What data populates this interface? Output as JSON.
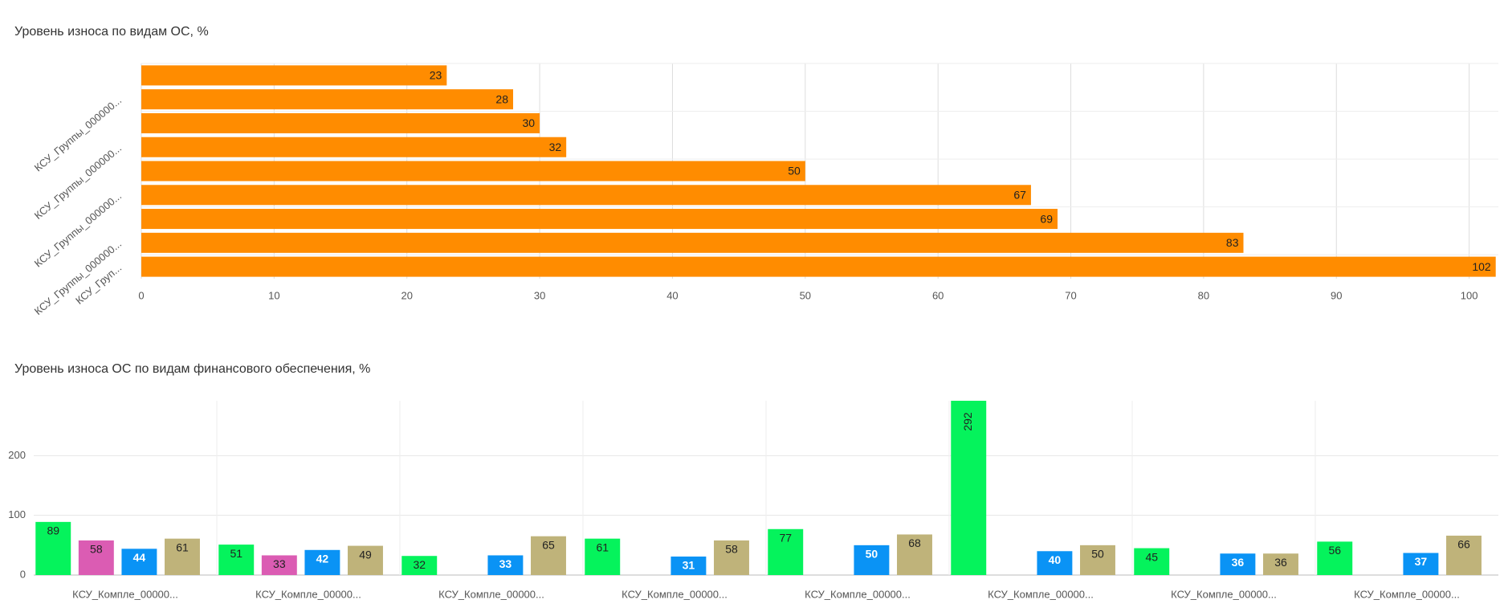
{
  "chart_data": [
    {
      "type": "hbar",
      "title": "Уровень износа по видам ОС, %",
      "categories": [
        null,
        "КСУ_Группы_000000...",
        null,
        "КСУ_Группы_000000...",
        null,
        "КСУ_Группы_000000...",
        null,
        "КСУ_Группы_000000...",
        "КСУ_Груп..."
      ],
      "values": [
        23,
        28,
        30,
        32,
        50,
        67,
        69,
        83,
        102
      ],
      "color": "#ff8c00",
      "xlim": [
        0,
        102.2
      ],
      "xticks": [
        0,
        10,
        20,
        30,
        40,
        50,
        60,
        70,
        80,
        90,
        100
      ],
      "grid": true
    },
    {
      "type": "grouped_bar",
      "title": "Уровень износа ОС по видам финансового обеспечения, %",
      "categories": [
        "КСУ_Компле_00000...",
        "КСУ_Компле_00000...",
        "КСУ_Компле_00000...",
        "КСУ_Компле_00000...",
        "КСУ_Компле_00000...",
        "КСУ_Компле_00000...",
        "КСУ_Компле_00000...",
        "КСУ_Компле_00000..."
      ],
      "series": [
        {
          "color": "#05f35c",
          "values": [
            89,
            51,
            32,
            61,
            77,
            292,
            45,
            56
          ]
        },
        {
          "color": "#db5cb3",
          "values": [
            58,
            33,
            null,
            null,
            null,
            null,
            null,
            null
          ]
        },
        {
          "color": "#0a93f5",
          "values": [
            44,
            42,
            33,
            31,
            50,
            40,
            36,
            37
          ]
        },
        {
          "color": "#bfb37a",
          "values": [
            61,
            49,
            65,
            58,
            68,
            50,
            36,
            66
          ]
        }
      ],
      "ylim": [
        0,
        292
      ],
      "yticks": [
        0,
        100,
        200
      ],
      "grid": true
    }
  ]
}
